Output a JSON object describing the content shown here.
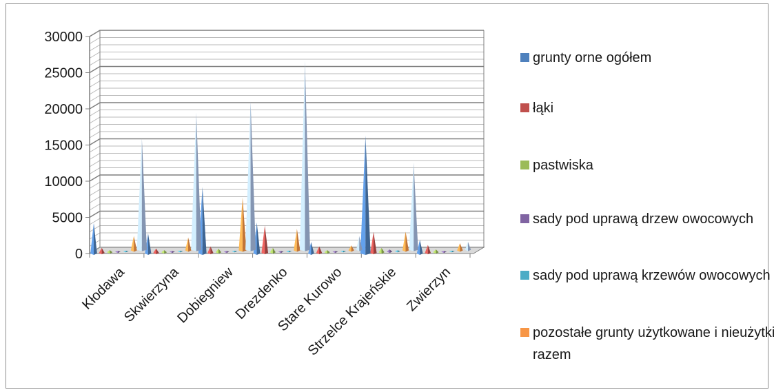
{
  "chart_data": {
    "type": "bar",
    "style": "3D cone/pyramid columns",
    "title": "",
    "xlabel": "",
    "ylabel": "",
    "ylim": [
      0,
      30000
    ],
    "yticks": [
      0,
      5000,
      10000,
      15000,
      20000,
      25000,
      30000
    ],
    "grid": true,
    "legend_position": "right",
    "categories": [
      "Kłodawa",
      "Skwierzyna",
      "Dobiegniew",
      "Drezdenko",
      "Stare Kurowo",
      "Strzelce Krajeńskie",
      "Zwierzyn"
    ],
    "series": [
      {
        "name": "grunty orne ogółem",
        "color": "#4f81bd",
        "values": [
          4200,
          2800,
          9200,
          4300,
          1600,
          16300,
          1900
        ]
      },
      {
        "name": "łąki",
        "color": "#c0504d",
        "values": [
          700,
          600,
          900,
          3800,
          900,
          2900,
          1100
        ]
      },
      {
        "name": "pastwiska",
        "color": "#9bbb59",
        "values": [
          300,
          300,
          500,
          600,
          300,
          600,
          400
        ]
      },
      {
        "name": "sady pod uprawą drzew owocowych",
        "color": "#8064a2",
        "values": [
          100,
          100,
          100,
          100,
          100,
          300,
          100
        ]
      },
      {
        "name": "sady pod uprawą krzewów owocowych",
        "color": "#4bacc6",
        "values": [
          50,
          50,
          50,
          50,
          50,
          100,
          50
        ]
      },
      {
        "name": "pozostałe grunty użytkowane i nieużytki razem",
        "color": "#f79646",
        "values": [
          2000,
          1800,
          7300,
          3000,
          700,
          2600,
          1000
        ]
      },
      {
        "name": "",
        "color": "#a9bfe4",
        "values": [
          15400,
          19000,
          20500,
          26100,
          1900,
          12100,
          1100
        ]
      }
    ]
  }
}
